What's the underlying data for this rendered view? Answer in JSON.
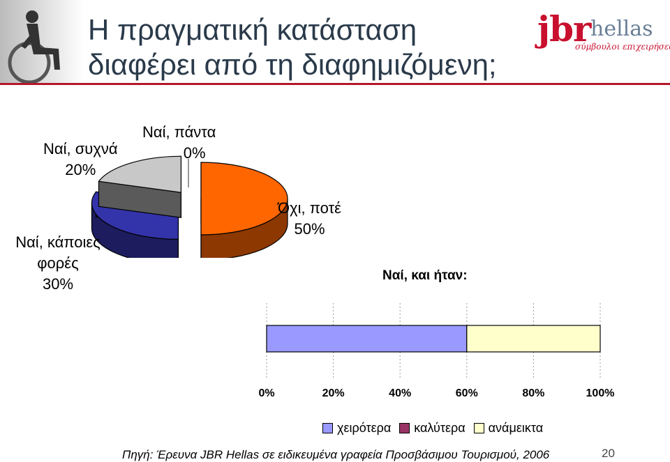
{
  "slide": {
    "title_line1": "Η πραγματική κατάσταση",
    "title_line2": "διαφέρει από τη διαφημιζόμενη;",
    "logo_text": "jbr",
    "logo_sub": "hellas",
    "logo_tagline": "σύμβουλοι επιχειρήσεων",
    "source": "Πηγή: Έρευνα JBR Hellas σε ειδικευμένα γραφεία Προσβάσιμου Τουρισμού, 2006",
    "page_number": "20"
  },
  "chart_data": [
    {
      "type": "pie",
      "style": "3d-exploded",
      "labels": [
        "Ναί, πάντα",
        "Όχι, ποτέ",
        "Ναί, κάποιες φορές",
        "Ναί, συχνά"
      ],
      "values": [
        0,
        50,
        30,
        20
      ],
      "value_labels": [
        "0%",
        "50%",
        "30%",
        "20%"
      ],
      "colors": [
        "#e8e8e8",
        "#ff6600",
        "#3333aa",
        "#c8c8c8"
      ]
    },
    {
      "type": "bar",
      "orientation": "horizontal",
      "stacked": true,
      "title": "Ναί, και ήταν:",
      "x_ticks": [
        "0%",
        "20%",
        "40%",
        "60%",
        "80%",
        "100%"
      ],
      "xlim": [
        0,
        100
      ],
      "series": [
        {
          "name": "χειρότερα",
          "values": [
            60
          ],
          "color": "#9999ff"
        },
        {
          "name": "καλύτερα",
          "values": [
            0
          ],
          "color": "#993366"
        },
        {
          "name": "ανάμεικτα",
          "values": [
            40
          ],
          "color": "#ffffcc"
        }
      ]
    }
  ]
}
